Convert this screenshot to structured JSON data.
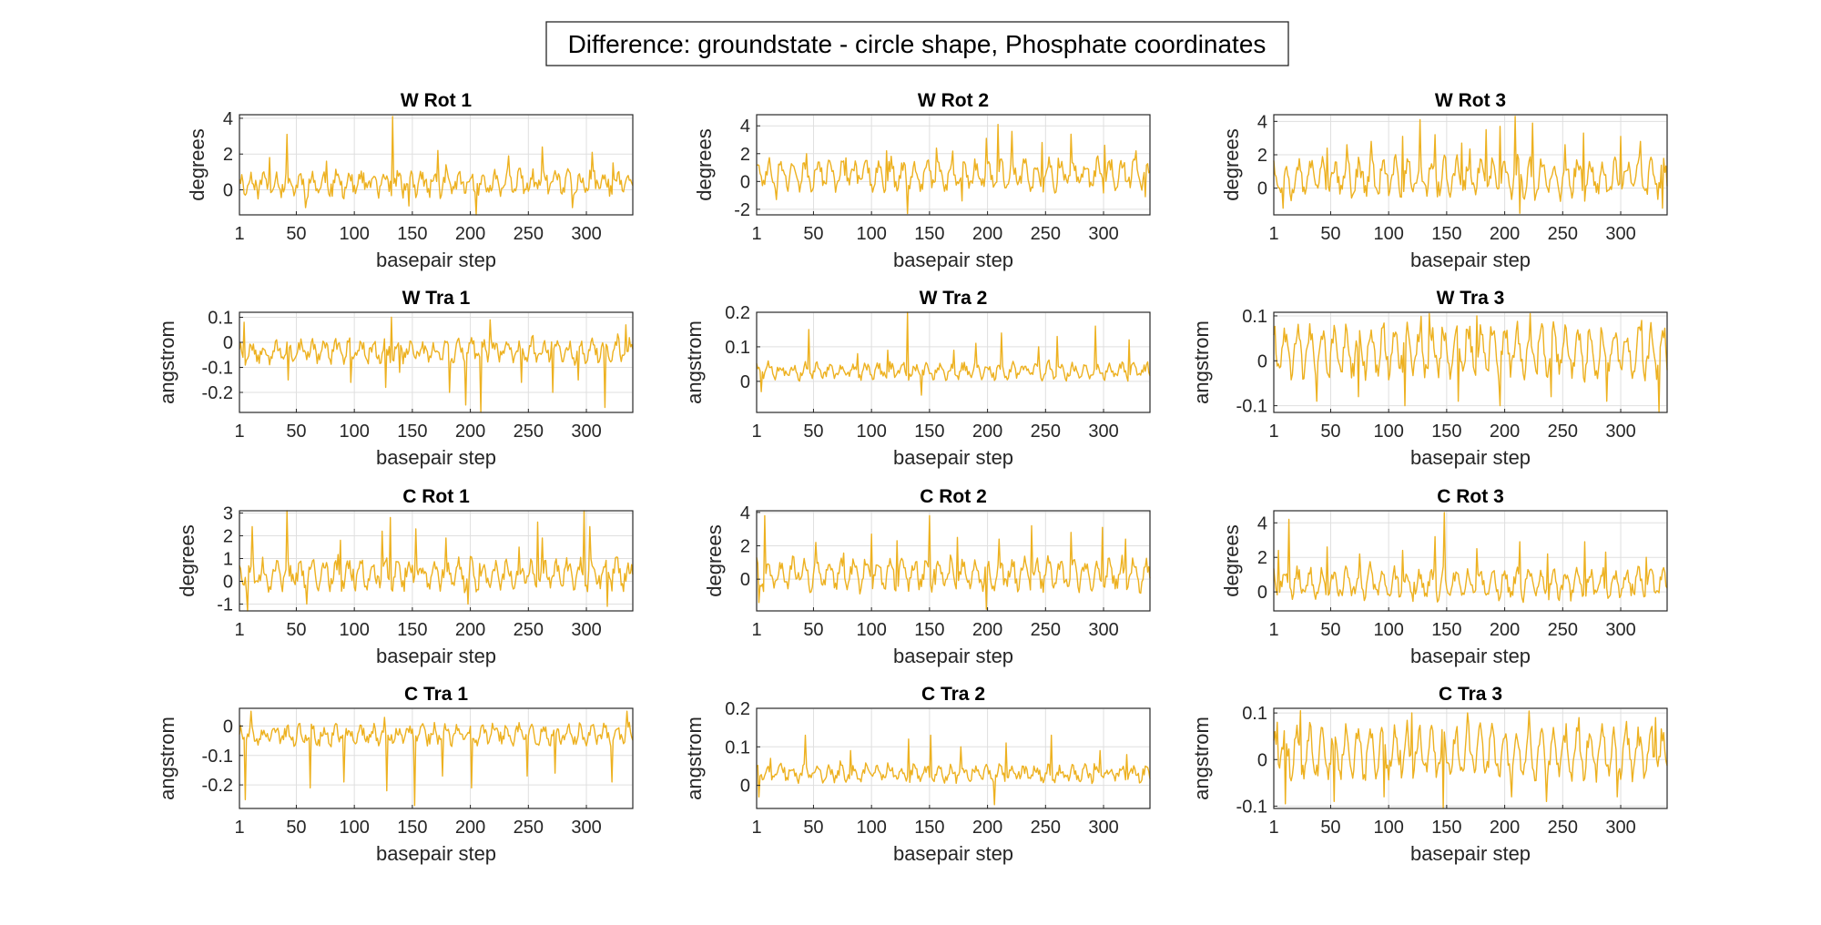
{
  "figure": {
    "suptitle": "Difference: groundstate - circle shape, Phosphate coordinates",
    "line_color": "#EDB120",
    "xlabel": "basepair step"
  },
  "chart_data": [
    {
      "type": "line",
      "title": "W Rot 1",
      "xlabel": "basepair step",
      "ylabel": "degrees",
      "xlim": [
        1,
        340
      ],
      "ylim": [
        -1.4,
        4.2
      ],
      "xticks": [
        1,
        50,
        100,
        150,
        200,
        250,
        300
      ],
      "yticks": [
        0,
        2,
        4
      ],
      "grid": true,
      "series": [
        {
          "seed": 11,
          "n": 340,
          "base": 0.35,
          "noise": 0.45,
          "amp": 0.45,
          "period": 10.5,
          "spikes": [
            [
              27,
              1.8
            ],
            [
              42,
              3.1
            ],
            [
              58,
              -1.0
            ],
            [
              76,
              1.6
            ],
            [
              133,
              4.1
            ],
            [
              147,
              -0.9
            ],
            [
              172,
              2.2
            ],
            [
              205,
              -1.4
            ],
            [
              233,
              1.9
            ],
            [
              262,
              2.4
            ],
            [
              288,
              -1.0
            ],
            [
              305,
              2.1
            ],
            [
              323,
              1.5
            ]
          ],
          "min": -1.4,
          "max": 4.2
        }
      ]
    },
    {
      "type": "line",
      "title": "W Rot 2",
      "xlabel": "basepair step",
      "ylabel": "degrees",
      "xlim": [
        1,
        340
      ],
      "ylim": [
        -2.4,
        4.8
      ],
      "xticks": [
        1,
        50,
        100,
        150,
        200,
        250,
        300
      ],
      "yticks": [
        -2,
        0,
        2,
        4
      ],
      "grid": true,
      "series": [
        {
          "seed": 23,
          "n": 340,
          "base": 0.5,
          "noise": 0.55,
          "amp": 0.8,
          "period": 10.5,
          "spikes": [
            [
              18,
              -1.3
            ],
            [
              44,
              2.0
            ],
            [
              78,
              1.7
            ],
            [
              113,
              2.2
            ],
            [
              131,
              -2.3
            ],
            [
              156,
              2.4
            ],
            [
              178,
              -1.4
            ],
            [
              199,
              3.1
            ],
            [
              209,
              4.1
            ],
            [
              221,
              3.6
            ],
            [
              247,
              2.8
            ],
            [
              272,
              3.4
            ],
            [
              301,
              2.6
            ],
            [
              328,
              2.2
            ],
            [
              336,
              -1.1
            ]
          ],
          "min": -2.4,
          "max": 4.8
        }
      ]
    },
    {
      "type": "line",
      "title": "W Rot 3",
      "xlabel": "basepair step",
      "ylabel": "degrees",
      "xlim": [
        1,
        340
      ],
      "ylim": [
        -1.6,
        4.4
      ],
      "xticks": [
        1,
        50,
        100,
        150,
        200,
        250,
        300
      ],
      "yticks": [
        0,
        2,
        4
      ],
      "grid": true,
      "series": [
        {
          "seed": 37,
          "n": 340,
          "base": 0.6,
          "noise": 0.55,
          "amp": 0.9,
          "period": 10.5,
          "spikes": [
            [
              9,
              -1.2
            ],
            [
              47,
              2.4
            ],
            [
              64,
              2.6
            ],
            [
              85,
              2.8
            ],
            [
              112,
              3.1
            ],
            [
              127,
              4.1
            ],
            [
              140,
              3.2
            ],
            [
              163,
              2.7
            ],
            [
              184,
              3.5
            ],
            [
              196,
              3.7
            ],
            [
              209,
              4.3
            ],
            [
              213,
              -1.5
            ],
            [
              224,
              3.9
            ],
            [
              252,
              2.6
            ],
            [
              268,
              3.3
            ],
            [
              300,
              3.1
            ],
            [
              317,
              2.8
            ],
            [
              336,
              -1.2
            ]
          ],
          "min": -1.6,
          "max": 4.4
        }
      ]
    },
    {
      "type": "line",
      "title": "W Tra 1",
      "xlabel": "basepair step",
      "ylabel": "angstrom",
      "xlim": [
        1,
        340
      ],
      "ylim": [
        -0.28,
        0.12
      ],
      "xticks": [
        1,
        50,
        100,
        150,
        200,
        250,
        300
      ],
      "yticks": [
        -0.2,
        -0.1,
        0,
        0.1
      ],
      "grid": true,
      "series": [
        {
          "seed": 53,
          "n": 340,
          "base": -0.035,
          "noise": 0.028,
          "amp": 0.03,
          "period": 10.5,
          "spikes": [
            [
              5,
              0.08
            ],
            [
              43,
              -0.15
            ],
            [
              97,
              -0.16
            ],
            [
              127,
              -0.18
            ],
            [
              132,
              0.1
            ],
            [
              139,
              -0.12
            ],
            [
              182,
              -0.2
            ],
            [
              196,
              -0.25
            ],
            [
              209,
              -0.28
            ],
            [
              217,
              0.09
            ],
            [
              244,
              -0.16
            ],
            [
              271,
              -0.2
            ],
            [
              293,
              -0.15
            ],
            [
              316,
              -0.26
            ],
            [
              334,
              0.07
            ]
          ],
          "min": -0.28,
          "max": 0.12
        }
      ]
    },
    {
      "type": "line",
      "title": "W Tra 2",
      "xlabel": "basepair step",
      "ylabel": "angstrom",
      "xlim": [
        1,
        340
      ],
      "ylim": [
        -0.09,
        0.2
      ],
      "xticks": [
        1,
        50,
        100,
        150,
        200,
        250,
        300
      ],
      "yticks": [
        0,
        0.1,
        0.2
      ],
      "grid": true,
      "series": [
        {
          "seed": 71,
          "n": 340,
          "base": 0.03,
          "noise": 0.014,
          "amp": 0.016,
          "period": 10.5,
          "spikes": [
            [
              5,
              -0.03
            ],
            [
              46,
              0.15
            ],
            [
              88,
              0.08
            ],
            [
              114,
              0.09
            ],
            [
              131,
              0.2
            ],
            [
              143,
              -0.04
            ],
            [
              171,
              0.09
            ],
            [
              190,
              0.11
            ],
            [
              212,
              0.14
            ],
            [
              244,
              0.1
            ],
            [
              260,
              0.13
            ],
            [
              293,
              0.16
            ],
            [
              322,
              0.12
            ]
          ],
          "min": -0.09,
          "max": 0.2
        }
      ]
    },
    {
      "type": "line",
      "title": "W Tra 3",
      "xlabel": "basepair step",
      "ylabel": "angstrom",
      "xlim": [
        1,
        340
      ],
      "ylim": [
        -0.115,
        0.108
      ],
      "xticks": [
        1,
        50,
        100,
        150,
        200,
        250,
        300
      ],
      "yticks": [
        -0.1,
        0,
        0.1
      ],
      "grid": true,
      "series": [
        {
          "seed": 89,
          "n": 340,
          "base": 0.02,
          "noise": 0.025,
          "amp": 0.045,
          "period": 10.5,
          "spikes": [
            [
              38,
              -0.09
            ],
            [
              74,
              -0.08
            ],
            [
              114,
              -0.1
            ],
            [
              135,
              0.105
            ],
            [
              160,
              -0.09
            ],
            [
              176,
              0.1
            ],
            [
              196,
              -0.1
            ],
            [
              222,
              0.105
            ],
            [
              240,
              -0.08
            ],
            [
              288,
              -0.09
            ],
            [
              318,
              0.09
            ],
            [
              333,
              -0.115
            ]
          ],
          "min": -0.115,
          "max": 0.108
        }
      ]
    },
    {
      "type": "line",
      "title": "C Rot 1",
      "xlabel": "basepair step",
      "ylabel": "degrees",
      "xlim": [
        1,
        340
      ],
      "ylim": [
        -1.3,
        3.1
      ],
      "xticks": [
        1,
        50,
        100,
        150,
        200,
        250,
        300
      ],
      "yticks": [
        -1,
        0,
        1,
        2,
        3
      ],
      "grid": true,
      "series": [
        {
          "seed": 101,
          "n": 340,
          "base": 0.3,
          "noise": 0.4,
          "amp": 0.45,
          "period": 10.5,
          "spikes": [
            [
              8,
              -1.3
            ],
            [
              12,
              2.4
            ],
            [
              42,
              3.1
            ],
            [
              59,
              -1.0
            ],
            [
              88,
              1.8
            ],
            [
              124,
              2.2
            ],
            [
              131,
              2.8
            ],
            [
              153,
              2.3
            ],
            [
              179,
              1.9
            ],
            [
              198,
              -1.0
            ],
            [
              258,
              2.6
            ],
            [
              262,
              1.9
            ],
            [
              298,
              3.1
            ],
            [
              303,
              2.4
            ],
            [
              318,
              -1.1
            ]
          ],
          "min": -1.3,
          "max": 3.1
        }
      ]
    },
    {
      "type": "line",
      "title": "C Rot 2",
      "xlabel": "basepair step",
      "ylabel": "degrees",
      "xlim": [
        1,
        340
      ],
      "ylim": [
        -1.9,
        4.1
      ],
      "xticks": [
        1,
        50,
        100,
        150,
        200,
        250,
        300
      ],
      "yticks": [
        0,
        2,
        4
      ],
      "grid": true,
      "series": [
        {
          "seed": 127,
          "n": 340,
          "base": 0.3,
          "noise": 0.45,
          "amp": 0.75,
          "period": 10.5,
          "spikes": [
            [
              3,
              -1.4
            ],
            [
              8,
              3.8
            ],
            [
              52,
              2.2
            ],
            [
              100,
              2.7
            ],
            [
              122,
              2.3
            ],
            [
              150,
              3.8
            ],
            [
              174,
              2.5
            ],
            [
              199,
              -1.8
            ],
            [
              210,
              2.4
            ],
            [
              238,
              3.2
            ],
            [
              272,
              2.8
            ],
            [
              299,
              3.1
            ],
            [
              319,
              2.4
            ]
          ],
          "min": -1.9,
          "max": 4.1
        }
      ]
    },
    {
      "type": "line",
      "title": "C Rot 3",
      "xlabel": "basepair step",
      "ylabel": "degrees",
      "xlim": [
        1,
        340
      ],
      "ylim": [
        -1.1,
        4.7
      ],
      "xticks": [
        1,
        50,
        100,
        150,
        200,
        250,
        300
      ],
      "yticks": [
        0,
        2,
        4
      ],
      "grid": true,
      "series": [
        {
          "seed": 149,
          "n": 340,
          "base": 0.45,
          "noise": 0.4,
          "amp": 0.7,
          "period": 10.5,
          "spikes": [
            [
              5,
              2.4
            ],
            [
              14,
              4.2
            ],
            [
              47,
              2.6
            ],
            [
              75,
              2.2
            ],
            [
              112,
              2.4
            ],
            [
              140,
              3.2
            ],
            [
              148,
              4.6
            ],
            [
              176,
              2.5
            ],
            [
              213,
              2.9
            ],
            [
              237,
              2.2
            ],
            [
              269,
              2.9
            ],
            [
              287,
              2.3
            ],
            [
              322,
              2.0
            ]
          ],
          "min": -1.1,
          "max": 4.7
        }
      ]
    },
    {
      "type": "line",
      "title": "C Tra 1",
      "xlabel": "basepair step",
      "ylabel": "angstrom",
      "xlim": [
        1,
        340
      ],
      "ylim": [
        -0.28,
        0.06
      ],
      "xticks": [
        1,
        50,
        100,
        150,
        200,
        250,
        300
      ],
      "yticks": [
        -0.2,
        -0.1,
        0
      ],
      "grid": true,
      "series": [
        {
          "seed": 163,
          "n": 340,
          "base": -0.03,
          "noise": 0.022,
          "amp": 0.022,
          "period": 10.5,
          "spikes": [
            [
              6,
              -0.25
            ],
            [
              11,
              0.05
            ],
            [
              62,
              -0.21
            ],
            [
              91,
              -0.19
            ],
            [
              128,
              -0.22
            ],
            [
              152,
              -0.27
            ],
            [
              176,
              -0.17
            ],
            [
              201,
              -0.21
            ],
            [
              249,
              -0.17
            ],
            [
              273,
              -0.16
            ],
            [
              322,
              -0.19
            ],
            [
              335,
              0.05
            ]
          ],
          "min": -0.28,
          "max": 0.06
        }
      ]
    },
    {
      "type": "line",
      "title": "C Tra 2",
      "xlabel": "basepair step",
      "ylabel": "angstrom",
      "xlim": [
        1,
        340
      ],
      "ylim": [
        -0.06,
        0.2
      ],
      "xticks": [
        1,
        50,
        100,
        150,
        200,
        250,
        300
      ],
      "yticks": [
        0,
        0.1,
        0.2
      ],
      "grid": true,
      "series": [
        {
          "seed": 181,
          "n": 340,
          "base": 0.03,
          "noise": 0.013,
          "amp": 0.014,
          "period": 10.5,
          "spikes": [
            [
              3,
              -0.03
            ],
            [
              13,
              0.07
            ],
            [
              43,
              0.13
            ],
            [
              82,
              0.09
            ],
            [
              132,
              0.12
            ],
            [
              151,
              0.13
            ],
            [
              177,
              0.1
            ],
            [
              206,
              -0.05
            ],
            [
              216,
              0.11
            ],
            [
              255,
              0.13
            ],
            [
              297,
              0.09
            ],
            [
              320,
              0.08
            ]
          ],
          "min": -0.06,
          "max": 0.2
        }
      ]
    },
    {
      "type": "line",
      "title": "C Tra 3",
      "xlabel": "basepair step",
      "ylabel": "angstrom",
      "xlim": [
        1,
        340
      ],
      "ylim": [
        -0.105,
        0.11
      ],
      "xticks": [
        1,
        50,
        100,
        150,
        200,
        250,
        300
      ],
      "yticks": [
        -0.1,
        0,
        0.1
      ],
      "grid": true,
      "series": [
        {
          "seed": 197,
          "n": 340,
          "base": 0.015,
          "noise": 0.022,
          "amp": 0.045,
          "period": 10.5,
          "spikes": [
            [
              4,
              0.08
            ],
            [
              11,
              -0.095
            ],
            [
              24,
              0.105
            ],
            [
              53,
              -0.09
            ],
            [
              96,
              -0.08
            ],
            [
              120,
              0.1
            ],
            [
              147,
              -0.105
            ],
            [
              168,
              0.1
            ],
            [
              206,
              -0.08
            ],
            [
              236,
              -0.09
            ],
            [
              264,
              0.09
            ],
            [
              297,
              -0.08
            ],
            [
              330,
              0.09
            ]
          ],
          "min": -0.105,
          "max": 0.11
        }
      ]
    }
  ]
}
